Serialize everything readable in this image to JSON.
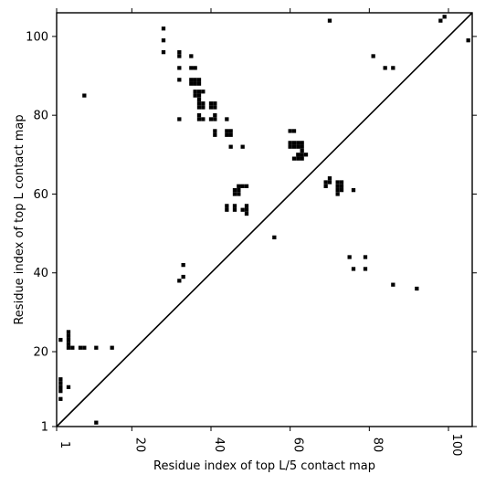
{
  "chart_data": {
    "type": "heatmap",
    "title": "",
    "xlabel": "Residue index of top L/5 contact map",
    "ylabel": "Residue index of top L contact map",
    "xlim": [
      1,
      106
    ],
    "ylim": [
      1,
      106
    ],
    "x_ticks": [
      {
        "value": 1,
        "label": "1"
      },
      {
        "value": 20,
        "label": "20"
      },
      {
        "value": 40,
        "label": "40"
      },
      {
        "value": 60,
        "label": "60"
      },
      {
        "value": 80,
        "label": "80"
      },
      {
        "value": 100,
        "label": "100"
      }
    ],
    "y_ticks": [
      {
        "value": 1,
        "label": "1"
      },
      {
        "value": 20,
        "label": "20"
      },
      {
        "value": 40,
        "label": "40"
      },
      {
        "value": 60,
        "label": "60"
      },
      {
        "value": 80,
        "label": "80"
      },
      {
        "value": 100,
        "label": "100"
      }
    ],
    "diagonal": {
      "from": [
        1,
        1
      ],
      "to": [
        106,
        106
      ]
    },
    "grid": false,
    "cell_color": "#000000",
    "contacts": [
      [
        11,
        2
      ],
      [
        2,
        8
      ],
      [
        2,
        10
      ],
      [
        2,
        11
      ],
      [
        2,
        12
      ],
      [
        2,
        13
      ],
      [
        2,
        23
      ],
      [
        4,
        11
      ],
      [
        4,
        21
      ],
      [
        4,
        22
      ],
      [
        4,
        23
      ],
      [
        4,
        24
      ],
      [
        4,
        25
      ],
      [
        5,
        21
      ],
      [
        7,
        21
      ],
      [
        8,
        21
      ],
      [
        8,
        85
      ],
      [
        11,
        21
      ],
      [
        15,
        21
      ],
      [
        28,
        96
      ],
      [
        28,
        99
      ],
      [
        28,
        102
      ],
      [
        32,
        38
      ],
      [
        32,
        79
      ],
      [
        32,
        89
      ],
      [
        32,
        92
      ],
      [
        32,
        95
      ],
      [
        32,
        96
      ],
      [
        33,
        39
      ],
      [
        33,
        42
      ],
      [
        35,
        88
      ],
      [
        35,
        89
      ],
      [
        35,
        92
      ],
      [
        35,
        95
      ],
      [
        36,
        85
      ],
      [
        36,
        86
      ],
      [
        36,
        88
      ],
      [
        36,
        89
      ],
      [
        36,
        92
      ],
      [
        37,
        79
      ],
      [
        37,
        80
      ],
      [
        37,
        82
      ],
      [
        37,
        83
      ],
      [
        37,
        84
      ],
      [
        37,
        85
      ],
      [
        37,
        86
      ],
      [
        37,
        88
      ],
      [
        37,
        89
      ],
      [
        38,
        79
      ],
      [
        38,
        82
      ],
      [
        38,
        83
      ],
      [
        38,
        86
      ],
      [
        40,
        79
      ],
      [
        40,
        82
      ],
      [
        40,
        83
      ],
      [
        41,
        75
      ],
      [
        41,
        76
      ],
      [
        41,
        79
      ],
      [
        41,
        80
      ],
      [
        41,
        82
      ],
      [
        41,
        83
      ],
      [
        44,
        56
      ],
      [
        44,
        57
      ],
      [
        44,
        75
      ],
      [
        44,
        76
      ],
      [
        44,
        79
      ],
      [
        45,
        72
      ],
      [
        45,
        75
      ],
      [
        45,
        76
      ],
      [
        46,
        56
      ],
      [
        46,
        57
      ],
      [
        46,
        60
      ],
      [
        46,
        61
      ],
      [
        47,
        60
      ],
      [
        47,
        61
      ],
      [
        47,
        62
      ],
      [
        48,
        56
      ],
      [
        48,
        62
      ],
      [
        48,
        72
      ],
      [
        49,
        55
      ],
      [
        49,
        56
      ],
      [
        49,
        57
      ],
      [
        49,
        62
      ],
      [
        56,
        49
      ],
      [
        60,
        72
      ],
      [
        60,
        73
      ],
      [
        60,
        76
      ],
      [
        61,
        69
      ],
      [
        61,
        72
      ],
      [
        61,
        73
      ],
      [
        61,
        76
      ],
      [
        62,
        69
      ],
      [
        62,
        70
      ],
      [
        62,
        72
      ],
      [
        62,
        73
      ],
      [
        63,
        69
      ],
      [
        63,
        70
      ],
      [
        63,
        71
      ],
      [
        63,
        72
      ],
      [
        63,
        73
      ],
      [
        64,
        70
      ],
      [
        69,
        62
      ],
      [
        69,
        63
      ],
      [
        70,
        63
      ],
      [
        70,
        64
      ],
      [
        70,
        104
      ],
      [
        72,
        60
      ],
      [
        72,
        61
      ],
      [
        72,
        62
      ],
      [
        72,
        63
      ],
      [
        73,
        61
      ],
      [
        73,
        62
      ],
      [
        73,
        63
      ],
      [
        75,
        44
      ],
      [
        76,
        41
      ],
      [
        76,
        61
      ],
      [
        79,
        41
      ],
      [
        79,
        44
      ],
      [
        81,
        95
      ],
      [
        84,
        92
      ],
      [
        86,
        37
      ],
      [
        86,
        92
      ],
      [
        92,
        36
      ],
      [
        98,
        104
      ],
      [
        99,
        105
      ],
      [
        105,
        99
      ]
    ]
  }
}
